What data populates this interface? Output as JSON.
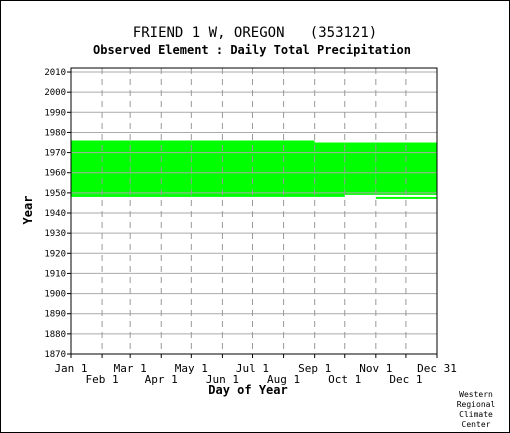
{
  "chart_data": {
    "type": "bar",
    "title": "FRIEND 1 W, OREGON   (353121)",
    "subtitle": "Observed Element : Daily Total Precipitation",
    "xlabel": "Day of Year",
    "ylabel": "Year",
    "ylim": [
      1870,
      2012
    ],
    "yticks": [
      1870,
      1880,
      1890,
      1900,
      1910,
      1920,
      1930,
      1940,
      1950,
      1960,
      1970,
      1980,
      1990,
      2000,
      2010
    ],
    "xticks": [
      {
        "label": "Jan 1",
        "day": 1,
        "row": 1
      },
      {
        "label": "Feb 1",
        "day": 32,
        "row": 2
      },
      {
        "label": "Mar 1",
        "day": 60,
        "row": 1
      },
      {
        "label": "Apr 1",
        "day": 91,
        "row": 2
      },
      {
        "label": "May 1",
        "day": 121,
        "row": 1
      },
      {
        "label": "Jun 1",
        "day": 152,
        "row": 2
      },
      {
        "label": "Jul 1",
        "day": 182,
        "row": 1
      },
      {
        "label": "Aug 1",
        "day": 213,
        "row": 2
      },
      {
        "label": "Sep 1",
        "day": 244,
        "row": 1
      },
      {
        "label": "Oct 1",
        "day": 274,
        "row": 2
      },
      {
        "label": "Nov 1",
        "day": 305,
        "row": 1
      },
      {
        "label": "Dec 1",
        "day": 335,
        "row": 2
      },
      {
        "label": "Dec 31",
        "day": 366,
        "row": 1
      }
    ],
    "xlim": [
      1,
      366
    ],
    "grid": true,
    "bar_color": "#00ff00",
    "coverage": [
      {
        "day_start": 1,
        "day_end": 60,
        "year_start": 1949,
        "year_end": 1976
      },
      {
        "day_start": 60,
        "day_end": 121,
        "year_start": 1949,
        "year_end": 1976
      },
      {
        "day_start": 121,
        "day_end": 244,
        "year_start": 1948,
        "year_end": 1976
      },
      {
        "day_start": 244,
        "day_end": 274,
        "year_start": 1948,
        "year_end": 1975
      },
      {
        "day_start": 274,
        "day_end": 305,
        "year_start": 1949,
        "year_end": 1975
      },
      {
        "day_start": 305,
        "day_end": 366,
        "year_start": 1949,
        "year_end": 1975
      }
    ],
    "stray_lines": [
      {
        "day_start": 1,
        "day_end": 121,
        "year": 1948.5
      },
      {
        "day_start": 305,
        "day_end": 366,
        "year": 1947.5
      }
    ]
  },
  "credit": [
    "Western",
    "Regional",
    "Climate",
    "Center"
  ]
}
